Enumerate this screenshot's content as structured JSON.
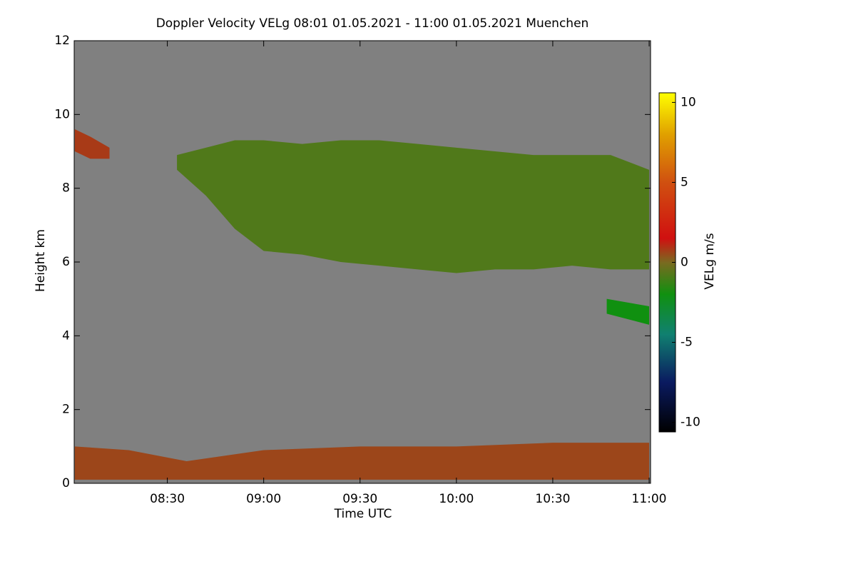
{
  "chart_data": {
    "type": "time-height",
    "title": "Doppler Velocity VELg   08:01 01.05.2021 - 11:00 01.05.2021 Muenchen",
    "xlabel": "Time UTC",
    "ylabel": "Height km",
    "xlim": [
      8.0167,
      11.0
    ],
    "xticks": [
      {
        "value": 8.5,
        "label": "08:30"
      },
      {
        "value": 9.0,
        "label": "09:00"
      },
      {
        "value": 9.5,
        "label": "09:30"
      },
      {
        "value": 10.0,
        "label": "10:00"
      },
      {
        "value": 10.5,
        "label": "10:30"
      },
      {
        "value": 11.0,
        "label": "11:00"
      }
    ],
    "ylim": [
      0,
      12
    ],
    "yticks": [
      0,
      2,
      4,
      6,
      8,
      10,
      12
    ],
    "background_color": "#808080",
    "colorbar": {
      "label": "VELg m/s",
      "zlim": [
        -10.6,
        10.6
      ],
      "ticks": [
        -10,
        -5,
        0,
        5,
        10
      ],
      "colormap": [
        {
          "value": -10.6,
          "color": "#000000"
        },
        {
          "value": -7.5,
          "color": "#0a1a60"
        },
        {
          "value": -4.5,
          "color": "#108070"
        },
        {
          "value": -2,
          "color": "#109010"
        },
        {
          "value": 0,
          "color": "#7a6a20"
        },
        {
          "value": 1.5,
          "color": "#d01010"
        },
        {
          "value": 5,
          "color": "#d05010"
        },
        {
          "value": 8,
          "color": "#e0a000"
        },
        {
          "value": 10.6,
          "color": "#ffff00"
        }
      ]
    },
    "layers": [
      {
        "x": [
          8.02,
          8.1,
          8.2
        ],
        "top": [
          9.6,
          9.4,
          9.1
        ],
        "base": [
          9.0,
          8.8,
          8.8
        ],
        "value": 0.8
      },
      {
        "x": [
          8.55,
          8.7,
          8.85,
          9.0,
          9.2,
          9.4,
          9.6,
          9.8,
          10.0,
          10.2,
          10.4,
          10.6,
          10.8,
          11.0
        ],
        "top": [
          8.9,
          9.1,
          9.3,
          9.3,
          9.2,
          9.3,
          9.3,
          9.2,
          9.1,
          9.0,
          8.9,
          8.9,
          8.9,
          8.5
        ],
        "base": [
          8.5,
          7.8,
          6.9,
          6.3,
          6.2,
          6.0,
          5.9,
          5.8,
          5.7,
          5.8,
          5.8,
          5.9,
          5.8,
          5.8
        ],
        "value": -0.8
      },
      {
        "x": [
          10.78,
          11.0
        ],
        "top": [
          5.0,
          4.8
        ],
        "base": [
          4.6,
          4.3
        ],
        "value": -2
      },
      {
        "x": [
          8.02,
          8.3,
          8.6,
          9.0,
          9.5,
          10.0,
          10.5,
          11.0
        ],
        "top": [
          1.0,
          0.9,
          0.6,
          0.9,
          1.0,
          1.0,
          1.1,
          1.1
        ],
        "base": [
          0.1,
          0.1,
          0.1,
          0.1,
          0.1,
          0.1,
          0.1,
          0.1
        ],
        "value": 0.6
      }
    ]
  }
}
